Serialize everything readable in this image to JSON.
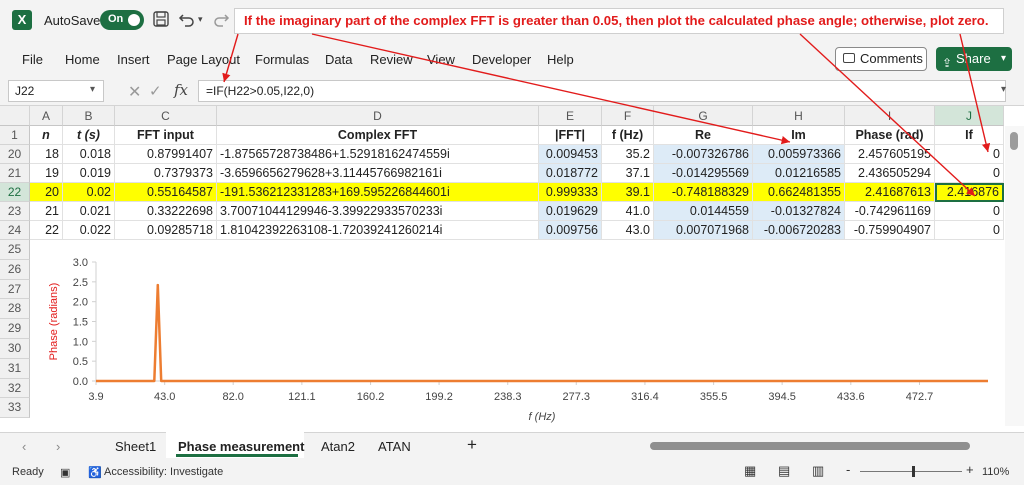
{
  "titlebar": {
    "logo": "X",
    "autosave_label": "AutoSave",
    "autosave_state": "On",
    "icons": [
      "save-icon",
      "undo-icon",
      "redo-icon",
      "customize-qat-icon"
    ]
  },
  "annotation": {
    "text": "If the imaginary part of the complex FFT is greater than 0.05, then plot the calculated phase angle; otherwise, plot zero.",
    "color": "#e21b1b"
  },
  "ribbon": {
    "tabs": [
      "File",
      "Home",
      "Insert",
      "Page Layout",
      "Formulas",
      "Data",
      "Review",
      "View",
      "Developer",
      "Help"
    ],
    "comments_label": "Comments",
    "share_label": "Share"
  },
  "formula_bar": {
    "name_box": "J22",
    "fx": "fx",
    "formula": "=IF(H22>0.05,I22,0)"
  },
  "grid": {
    "columns": [
      "A",
      "B",
      "C",
      "D",
      "E",
      "F",
      "G",
      "H",
      "I",
      "J"
    ],
    "header_row": {
      "row_number": "1",
      "cells": [
        "n",
        "t (s)",
        "FFT input",
        "Complex FFT",
        "|FFT|",
        "f (Hz)",
        "Re",
        "Im",
        "Phase (rad)",
        "If"
      ]
    },
    "rows": [
      {
        "row_number": "20",
        "cells": [
          "18",
          "0.018",
          "0.87991407",
          "-1.87565728738486+1.52918162474559i",
          "0.009453",
          "35.2",
          "-0.007326786",
          "0.005973366",
          "2.457605195",
          "0"
        ]
      },
      {
        "row_number": "21",
        "cells": [
          "19",
          "0.019",
          "0.7379373",
          "-3.6596656279628+3.11445766982161i",
          "0.018772",
          "37.1",
          "-0.014295569",
          "0.01216585",
          "2.436505294",
          "0"
        ]
      },
      {
        "row_number": "22",
        "cells": [
          "20",
          "0.02",
          "0.55164587",
          "-191.536212331283+169.595226844601i",
          "0.999333",
          "39.1",
          "-0.748188329",
          "0.662481355",
          "2.41687613",
          "2.416876"
        ]
      },
      {
        "row_number": "23",
        "cells": [
          "21",
          "0.021",
          "0.33222698",
          "3.70071044129946-3.39922933570233i",
          "0.019629",
          "41.0",
          "0.0144559",
          "-0.01327824",
          "-0.742961169",
          "0"
        ]
      },
      {
        "row_number": "24",
        "cells": [
          "22",
          "0.022",
          "0.09285718",
          "1.81042392263108-1.72039241260214i",
          "0.009756",
          "43.0",
          "0.007071968",
          "-0.006720283",
          "-0.759904907",
          "0"
        ]
      }
    ],
    "chart_rows": [
      "25",
      "26",
      "27",
      "28",
      "29",
      "30",
      "31",
      "32",
      "33"
    ],
    "highlight_color": "#ffff00",
    "blue_fill": "#ddebf7"
  },
  "chart_data": {
    "type": "line",
    "title": "",
    "xlabel": "f (Hz)",
    "ylabel": "Phase (radians)",
    "x_ticks": [
      "3.9",
      "43.0",
      "82.0",
      "121.1",
      "160.2",
      "199.2",
      "238.3",
      "277.3",
      "316.4",
      "355.5",
      "394.5",
      "433.6",
      "472.7"
    ],
    "y_ticks": [
      "0.0",
      "0.5",
      "1.0",
      "1.5",
      "2.0",
      "2.5",
      "3.0"
    ],
    "ylim": [
      0,
      3
    ],
    "xlim": [
      3.9,
      511.7
    ],
    "series": [
      {
        "color": "#ed7d31",
        "x": [
          3.9,
          35.2,
          37.1,
          39.1,
          41.0,
          43.0,
          511.7
        ],
        "y": [
          0,
          0,
          0,
          2.416876,
          0,
          0,
          0
        ]
      }
    ],
    "label_color": "#e21b1b"
  },
  "sheet_tabs": {
    "tabs": [
      "Sheet1",
      "Phase measurement",
      "Atan2",
      "ATAN"
    ],
    "active": "Phase measurement",
    "add_label": "+"
  },
  "status_bar": {
    "ready": "Ready",
    "accessibility": "Accessibility: Investigate",
    "zoom": "110%",
    "zoom_minus": "-",
    "zoom_plus": "+"
  }
}
